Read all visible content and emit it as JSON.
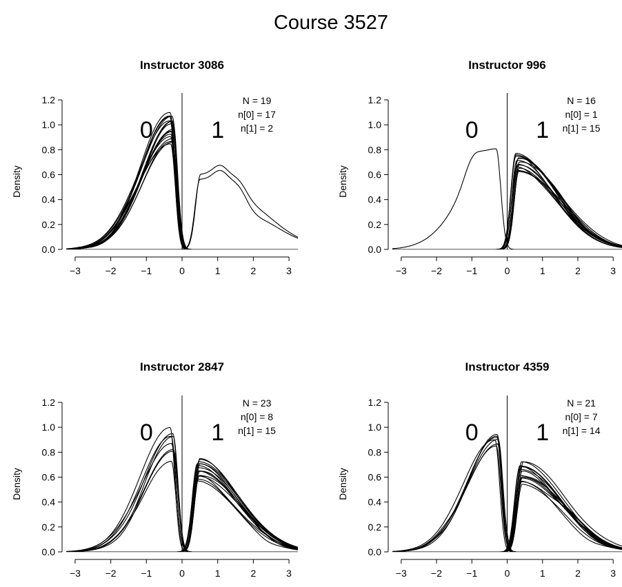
{
  "title": "Course 3527",
  "chart_data": [
    {
      "type": "line",
      "title": "Instructor 3086",
      "xlabel": "",
      "ylabel": "Density",
      "xlim": [
        -3.25,
        3.25
      ],
      "ylim": [
        0,
        1.2
      ],
      "x_ticks": [
        -3,
        -2,
        -1,
        0,
        1,
        2,
        3
      ],
      "y_ticks": [
        0.0,
        0.2,
        0.4,
        0.6,
        0.8,
        1.0,
        1.2
      ],
      "y_tick_labels": [
        "0.0",
        "0.2",
        "0.4",
        "0.6",
        "0.8",
        "1.0",
        "1.2"
      ],
      "class_labels": [
        "0",
        "1"
      ],
      "stats": [
        "N = 19",
        "n[0] = 17",
        "n[1] = 2"
      ],
      "groups": [
        {
          "class": "0",
          "count": 17,
          "peak_x": -0.3,
          "peak_range": [
            0.85,
            1.1
          ],
          "left_spread": 0.85
        },
        {
          "class": "1",
          "count": 2,
          "peak_x": 0.5,
          "peak_range": [
            0.56,
            0.6
          ],
          "right_spread": 1.4,
          "bumps": [
            [
              1.1,
              0.45
            ],
            [
              1.6,
              0.38
            ]
          ]
        }
      ]
    },
    {
      "type": "line",
      "title": "Instructor 996",
      "xlabel": "",
      "ylabel": "Density",
      "xlim": [
        -3.25,
        3.25
      ],
      "ylim": [
        0,
        1.2
      ],
      "x_ticks": [
        -3,
        -2,
        -1,
        0,
        1,
        2,
        3
      ],
      "y_ticks": [
        0.0,
        0.2,
        0.4,
        0.6,
        0.8,
        1.0,
        1.2
      ],
      "y_tick_labels": [
        "0.0",
        "0.2",
        "0.4",
        "0.6",
        "0.8",
        "1.0",
        "1.2"
      ],
      "class_labels": [
        "0",
        "1"
      ],
      "stats": [
        "N = 16",
        "n[0] = 1",
        "n[1] = 15"
      ],
      "groups": [
        {
          "class": "0",
          "count": 1,
          "peak_x": -0.3,
          "peak_range": [
            0.8,
            0.8
          ],
          "left_spread": 0.9,
          "bumps": [
            [
              -1.0,
              0.45
            ]
          ]
        },
        {
          "class": "1",
          "count": 15,
          "peak_x": 0.3,
          "peak_range": [
            0.62,
            0.78
          ],
          "right_spread": 1.1
        }
      ]
    },
    {
      "type": "line",
      "title": "Instructor 2847",
      "xlabel": "",
      "ylabel": "Density",
      "xlim": [
        -3.25,
        3.25
      ],
      "ylim": [
        0,
        1.2
      ],
      "x_ticks": [
        -3,
        -2,
        -1,
        0,
        1,
        2,
        3
      ],
      "y_ticks": [
        0.0,
        0.2,
        0.4,
        0.6,
        0.8,
        1.0,
        1.2
      ],
      "y_tick_labels": [
        "0.0",
        "0.2",
        "0.4",
        "0.6",
        "0.8",
        "1.0",
        "1.2"
      ],
      "class_labels": [
        "0",
        "1"
      ],
      "stats": [
        "N = 23",
        "n[0] = 8",
        "n[1] = 15"
      ],
      "groups": [
        {
          "class": "0",
          "count": 8,
          "peak_x": -0.3,
          "peak_range": [
            0.75,
            1.0
          ],
          "left_spread": 0.85
        },
        {
          "class": "1",
          "count": 15,
          "peak_x": 0.45,
          "peak_range": [
            0.57,
            0.75
          ],
          "right_spread": 1.1
        }
      ]
    },
    {
      "type": "line",
      "title": "Instructor 4359",
      "xlabel": "",
      "ylabel": "Density",
      "xlim": [
        -3.25,
        3.25
      ],
      "ylim": [
        0,
        1.2
      ],
      "x_ticks": [
        -3,
        -2,
        -1,
        0,
        1,
        2,
        3
      ],
      "y_ticks": [
        0.0,
        0.2,
        0.4,
        0.6,
        0.8,
        1.0,
        1.2
      ],
      "y_tick_labels": [
        "0.0",
        "0.2",
        "0.4",
        "0.6",
        "0.8",
        "1.0",
        "1.2"
      ],
      "class_labels": [
        "0",
        "1"
      ],
      "stats": [
        "N = 21",
        "n[0] = 7",
        "n[1] = 14"
      ],
      "groups": [
        {
          "class": "0",
          "count": 7,
          "peak_x": -0.3,
          "peak_range": [
            0.85,
            0.95
          ],
          "left_spread": 0.85
        },
        {
          "class": "1",
          "count": 14,
          "peak_x": 0.4,
          "peak_range": [
            0.55,
            0.73
          ],
          "right_spread": 1.15
        }
      ]
    }
  ]
}
